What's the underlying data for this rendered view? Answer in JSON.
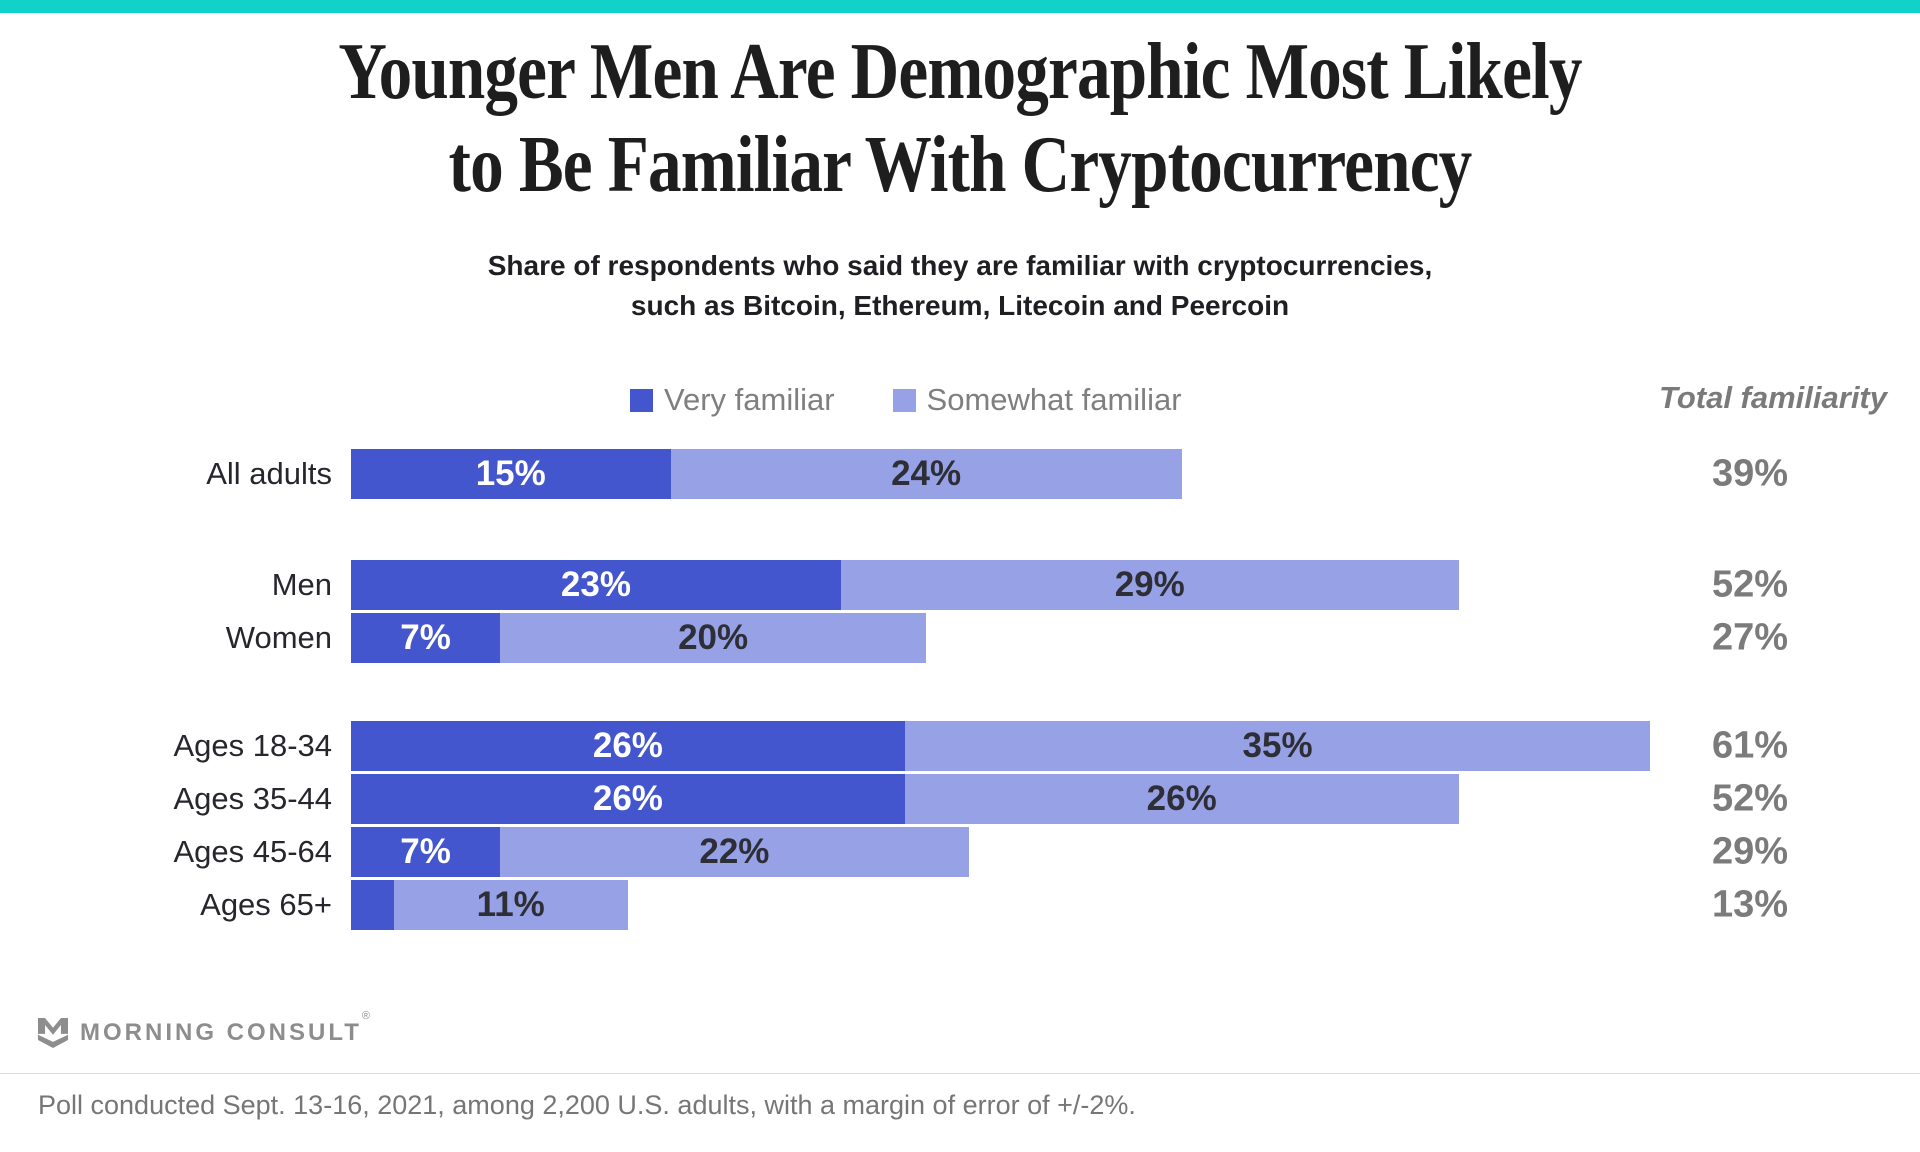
{
  "page": {
    "background": "#ffffff",
    "accent_bar_color": "#10D2C9"
  },
  "title": {
    "line1": "Younger Men Are Demographic Most Likely",
    "line2": "to Be Familiar With Cryptocurrency"
  },
  "subtitle": {
    "line1": "Share of respondents who said they are familiar with cryptocurrencies,",
    "line2": "such as Bitcoin, Ethereum, Litecoin and Peercoin"
  },
  "legend": {
    "items": [
      {
        "label": "Very familiar",
        "color": "#4456CE"
      },
      {
        "label": "Somewhat familiar",
        "color": "#97A1E5"
      }
    ]
  },
  "total_header": "Total familiarity",
  "chart_data": {
    "type": "bar",
    "orientation": "horizontal",
    "stacked": true,
    "unit": "%",
    "series": [
      "Very familiar",
      "Somewhat familiar"
    ],
    "colors": {
      "very": "#4456CE",
      "somewhat": "#97A1E5"
    },
    "x_range": [
      0,
      61
    ],
    "grid": false,
    "legend_position": "top",
    "groups": [
      {
        "name": "all-adults",
        "rows": [
          {
            "label": "All adults",
            "very": 15,
            "somewhat": 24,
            "total": 39
          }
        ]
      },
      {
        "name": "gender",
        "rows": [
          {
            "label": "Men",
            "very": 23,
            "somewhat": 29,
            "total": 52
          },
          {
            "label": "Women",
            "very": 7,
            "somewhat": 20,
            "total": 27
          }
        ]
      },
      {
        "name": "age",
        "rows": [
          {
            "label": "Ages 18-34",
            "very": 26,
            "somewhat": 35,
            "total": 61
          },
          {
            "label": "Ages 35-44",
            "very": 26,
            "somewhat": 26,
            "total": 52
          },
          {
            "label": "Ages 45-64",
            "very": 7,
            "somewhat": 22,
            "total": 29
          },
          {
            "label": "Ages 65+",
            "very": 2,
            "somewhat": 11,
            "total": 13,
            "hide_very_label": true
          }
        ]
      }
    ]
  },
  "logo": {
    "name": "Morning Consult",
    "text": "MORNING CONSULT",
    "registered_mark": "®"
  },
  "footer": {
    "note": "Poll conducted Sept. 13-16, 2021, among 2,200 U.S. adults, with a margin of error of +/-2%."
  }
}
